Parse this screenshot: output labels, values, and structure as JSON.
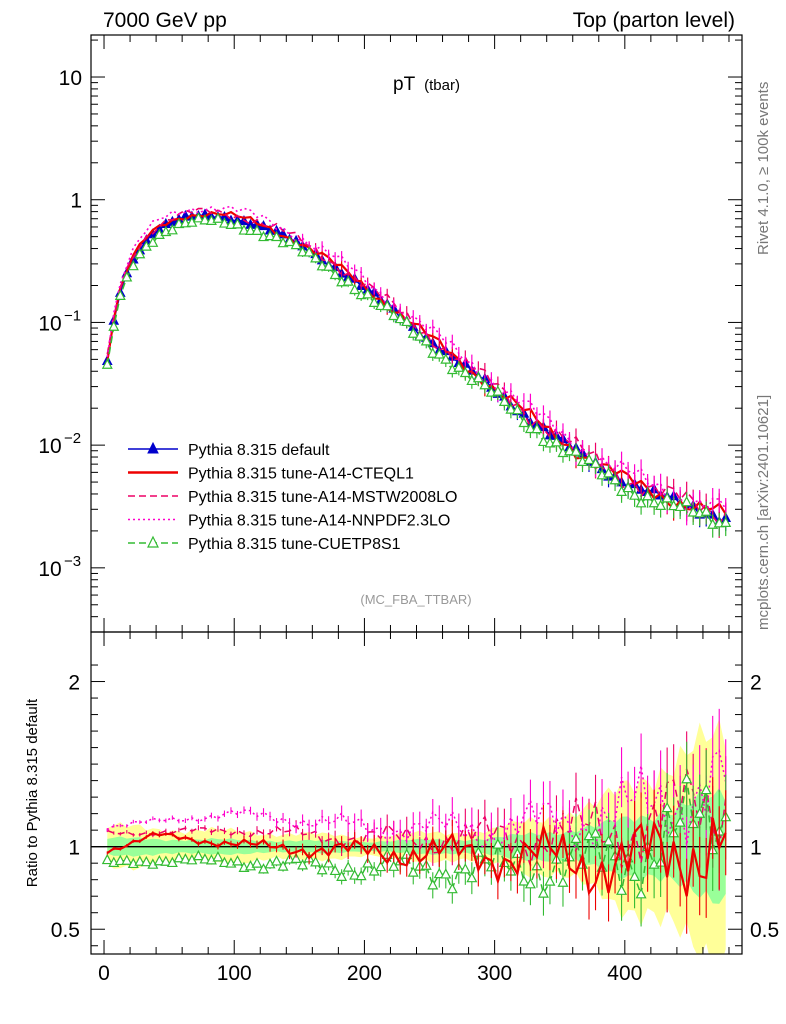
{
  "header": {
    "left": "7000 GeV pp",
    "right": "Top (parton level)"
  },
  "side": {
    "rivet": "Rivet 4.1.0, ≥ 100k events",
    "mcplots": "mcplots.cern.ch [arXiv:2401.10621]"
  },
  "colors": {
    "default": "#0000cc",
    "cteql1": "#ee0000",
    "mstw": "#ee0066",
    "nnpdf": "#ff00cc",
    "cuetp": "#33bb33",
    "band_yellow": "#ffff99",
    "band_green": "#99ff99"
  },
  "chart_data": [
    {
      "type": "line",
      "title": "pT",
      "title_sub": "(tbar)",
      "watermark": "(MC_FBA_TTBAR)",
      "yscale": "log",
      "xlim": [
        -10,
        490
      ],
      "ylim": [
        0.0003,
        22
      ],
      "yticks": [
        {
          "value": 10,
          "base": "10",
          "exp": ""
        },
        {
          "value": 1,
          "base": "1",
          "exp": ""
        },
        {
          "value": 0.1,
          "base": "10",
          "exp": "−1"
        },
        {
          "value": 0.01,
          "base": "10",
          "exp": "−2"
        },
        {
          "value": 0.001,
          "base": "10",
          "exp": "−3"
        }
      ],
      "legend": [
        {
          "key": "default",
          "label": "Pythia 8.315 default",
          "style": "solid",
          "marker": "filled-triangle"
        },
        {
          "key": "cteql1",
          "label": "Pythia 8.315 tune-A14-CTEQL1",
          "style": "solid",
          "marker": "none"
        },
        {
          "key": "mstw",
          "label": "Pythia 8.315 tune-A14-MSTW2008LO",
          "style": "dashed",
          "marker": "none"
        },
        {
          "key": "nnpdf",
          "label": "Pythia 8.315 tune-A14-NNPDF2.3LO",
          "style": "dotted",
          "marker": "none"
        },
        {
          "key": "cuetp",
          "label": "Pythia 8.315 tune-CUETP8S1",
          "style": "dashed",
          "marker": "open-triangle"
        }
      ],
      "shape": {
        "x": [
          2.5,
          10,
          20,
          30,
          40,
          50,
          60,
          70,
          80,
          90,
          100,
          110,
          120,
          130,
          140,
          150,
          160,
          170,
          180,
          190,
          200,
          220,
          240,
          260,
          280,
          300,
          320,
          340,
          360,
          380,
          400,
          420,
          440,
          460,
          477.5
        ],
        "y": [
          0.048,
          0.15,
          0.3,
          0.44,
          0.56,
          0.64,
          0.7,
          0.73,
          0.74,
          0.73,
          0.7,
          0.66,
          0.61,
          0.55,
          0.49,
          0.43,
          0.37,
          0.32,
          0.27,
          0.23,
          0.19,
          0.13,
          0.088,
          0.06,
          0.041,
          0.028,
          0.019,
          0.013,
          0.0092,
          0.0067,
          0.0051,
          0.0041,
          0.0034,
          0.0029,
          0.0026
        ]
      },
      "series": [
        {
          "key": "default",
          "scale": 1.0,
          "noise": 0.03
        },
        {
          "key": "cteql1",
          "scale": 1.04,
          "noise": 0.05
        },
        {
          "key": "mstw",
          "scale": 1.08,
          "noise": 0.07
        },
        {
          "key": "nnpdf",
          "scale": 1.17,
          "noise": 0.07
        },
        {
          "key": "cuetp",
          "scale": 0.9,
          "noise": 0.05
        }
      ],
      "x_step": 5,
      "x_first": 2.5,
      "x_last": 477.5
    },
    {
      "type": "line",
      "ylabel": "Ratio to Pythia 8.315 default",
      "ylim": [
        0.35,
        2.3
      ],
      "yticks": [
        0.5,
        1,
        2
      ],
      "xticks": [
        0,
        100,
        200,
        300,
        400
      ],
      "xlim": [
        -10,
        490
      ],
      "reference": 1,
      "series_mean": {
        "default": [
          [
            0,
            1.0
          ],
          [
            480,
            1.0
          ]
        ],
        "cteql1": [
          [
            0,
            0.97
          ],
          [
            40,
            1.07
          ],
          [
            120,
            1.0
          ],
          [
            200,
            0.97
          ],
          [
            300,
            0.95
          ],
          [
            400,
            0.9
          ],
          [
            480,
            1.05
          ]
        ],
        "mstw": [
          [
            0,
            1.08
          ],
          [
            100,
            1.1
          ],
          [
            200,
            1.05
          ],
          [
            300,
            1.05
          ],
          [
            400,
            1.1
          ],
          [
            480,
            1.3
          ]
        ],
        "nnpdf": [
          [
            0,
            1.12
          ],
          [
            100,
            1.2
          ],
          [
            200,
            1.12
          ],
          [
            300,
            1.1
          ],
          [
            400,
            1.2
          ],
          [
            480,
            1.4
          ]
        ],
        "cuetp": [
          [
            0,
            0.9
          ],
          [
            60,
            0.92
          ],
          [
            200,
            0.87
          ],
          [
            300,
            0.86
          ],
          [
            400,
            0.92
          ],
          [
            480,
            1.2
          ]
        ]
      },
      "band_yellow": [
        [
          0,
          0.12
        ],
        [
          200,
          0.06
        ],
        [
          300,
          0.1
        ],
        [
          380,
          0.25
        ],
        [
          430,
          0.5
        ],
        [
          480,
          0.65
        ]
      ],
      "band_green": [
        [
          0,
          0.05
        ],
        [
          200,
          0.03
        ],
        [
          300,
          0.05
        ],
        [
          380,
          0.12
        ],
        [
          430,
          0.22
        ],
        [
          480,
          0.3
        ]
      ]
    }
  ]
}
